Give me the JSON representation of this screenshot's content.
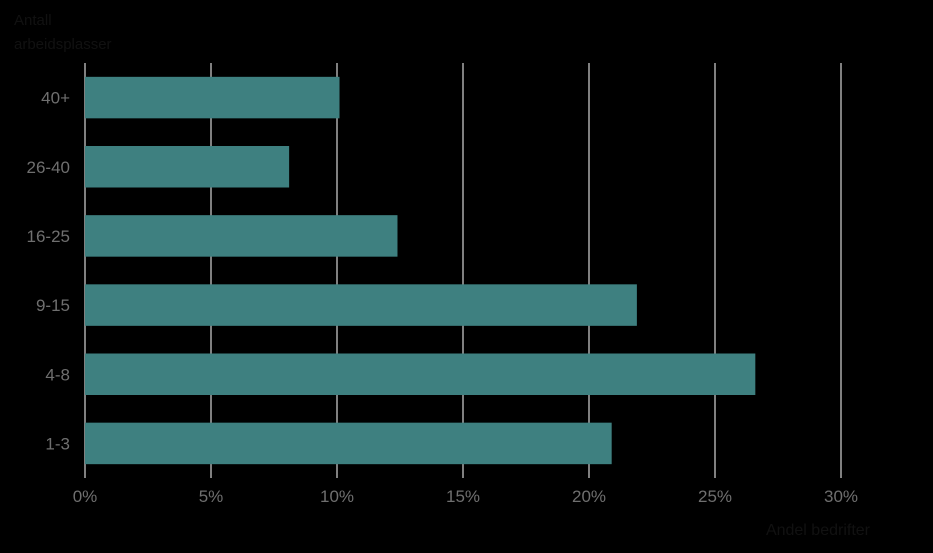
{
  "chart_data": {
    "type": "bar",
    "orientation": "horizontal",
    "title": "",
    "ylabel_line1": "Antall",
    "ylabel_line2": "arbeidsplasser",
    "xlabel": "Andel bedrifter",
    "categories": [
      "40+",
      "26-40",
      "16-25",
      "9-15",
      "4-8",
      "1-3"
    ],
    "values": [
      10.1,
      8.1,
      12.4,
      21.9,
      26.6,
      20.9
    ],
    "xlim": [
      0,
      30
    ],
    "xticks": [
      0,
      5,
      10,
      15,
      20,
      25,
      30
    ],
    "xtick_labels": [
      "0%",
      "5%",
      "10%",
      "15%",
      "20%",
      "25%",
      "30%"
    ],
    "grid": "vertical",
    "legend": "none",
    "colors": {
      "bar": "#3e8080",
      "grid": "#ffffff",
      "tick_text": "#6f6f6f",
      "background": "#000000"
    }
  }
}
